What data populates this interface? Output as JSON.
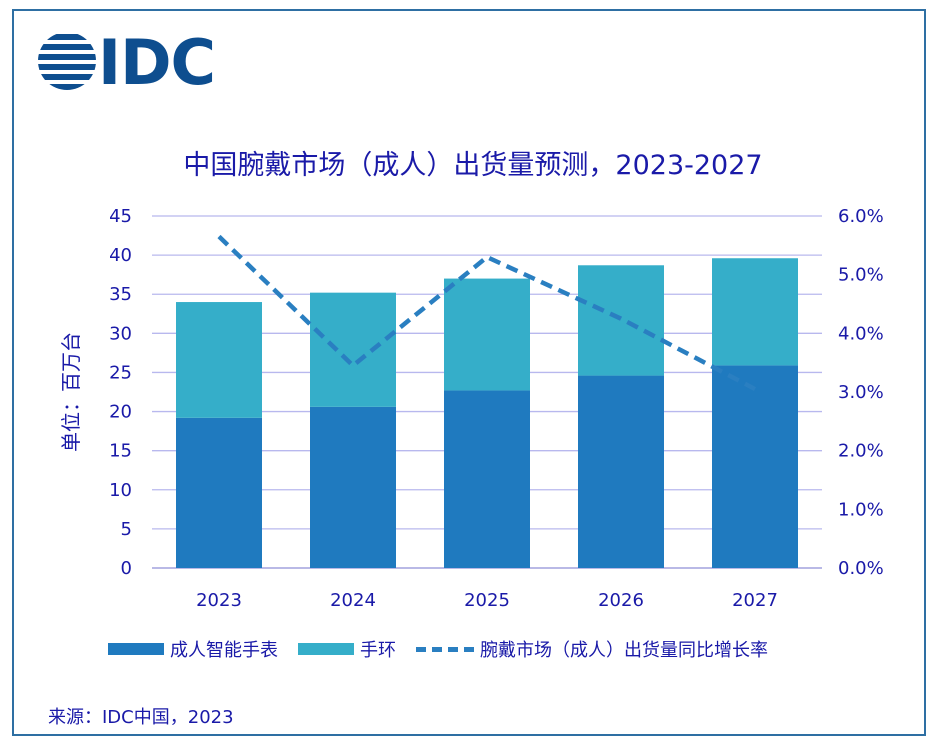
{
  "logo": {
    "text": "IDC"
  },
  "chart_data": {
    "type": "bar",
    "stacked": true,
    "title": "中国腕戴市场（成人）出货量预测，2023-2027",
    "ylabel": "单位：百万台",
    "categories": [
      "2023",
      "2024",
      "2025",
      "2026",
      "2027"
    ],
    "ylim": [
      0,
      45
    ],
    "yticks": [
      "0",
      "5",
      "10",
      "15",
      "20",
      "25",
      "30",
      "35",
      "40",
      "45"
    ],
    "y2lim": [
      0,
      6.0
    ],
    "y2ticks": [
      "0.0%",
      "1.0%",
      "2.0%",
      "3.0%",
      "4.0%",
      "5.0%",
      "6.0%"
    ],
    "series": [
      {
        "name": "成人智能手表",
        "kind": "bar",
        "color": "#1f7abf",
        "values": [
          19.2,
          20.6,
          22.7,
          24.6,
          25.9
        ]
      },
      {
        "name": "手环",
        "kind": "bar",
        "color": "#35aec9",
        "values": [
          14.8,
          14.6,
          14.3,
          14.1,
          13.7
        ]
      },
      {
        "name": "腕戴市场（成人）出货量同比增长率",
        "kind": "line",
        "axis": "right",
        "dashed": true,
        "color": "#2a7fc1",
        "values": [
          5.65,
          3.45,
          5.3,
          4.25,
          3.05
        ]
      }
    ],
    "grid": true,
    "legend_position": "bottom"
  },
  "source": "来源：IDC中国，2023"
}
